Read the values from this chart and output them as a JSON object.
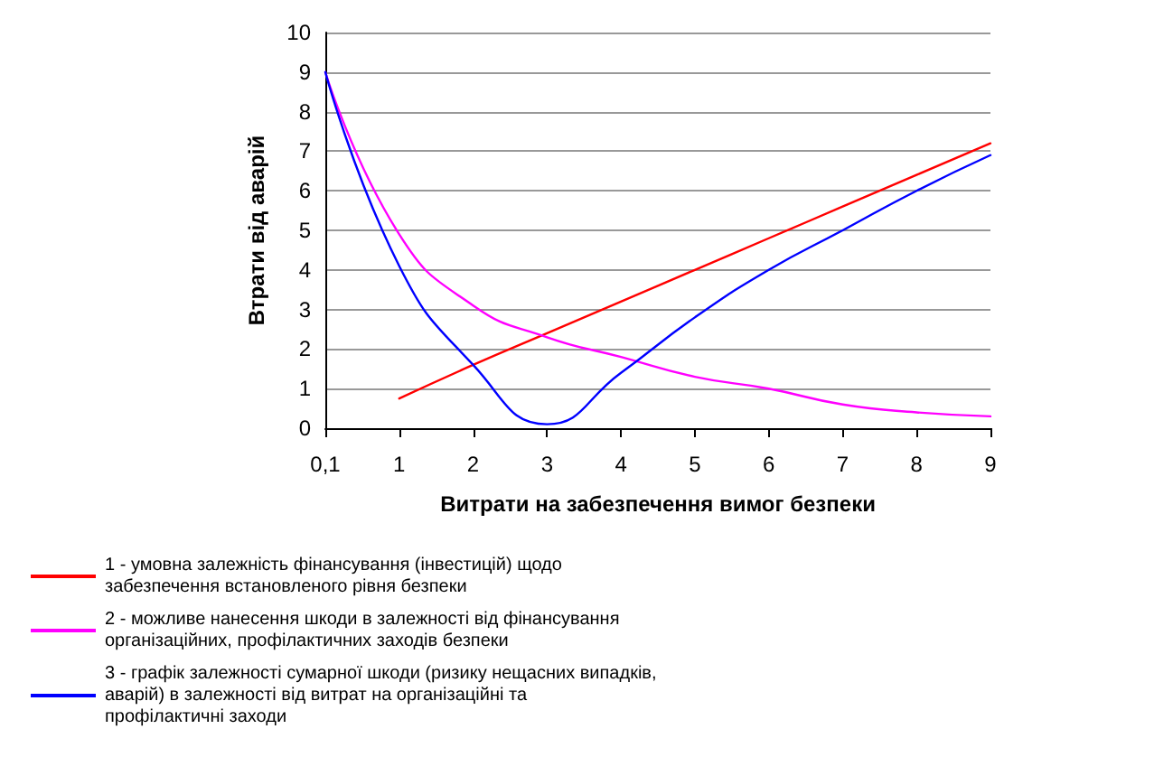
{
  "chart_data": {
    "type": "line",
    "xlabel": "Витрати на забезпечення вимог безпеки",
    "ylabel": "Втрати від аварій",
    "categories": [
      "0,1",
      "1",
      "2",
      "3",
      "4",
      "5",
      "6",
      "7",
      "8",
      "9"
    ],
    "series": [
      {
        "name": "1 - умовна залежність фінансування (інвестицій) щодо забезпечення встановленого рівня безпеки",
        "color": "#ff0000",
        "values": [
          null,
          0.75,
          1.6,
          2.4,
          3.2,
          4.0,
          4.8,
          5.6,
          6.4,
          7.2
        ]
      },
      {
        "name": "2 - можливе нанесення шкоди в залежності від фінансування організаційних, профілактичних заходів безпеки",
        "color": "#ff00ff",
        "values": [
          9,
          4.9,
          3.1,
          2.3,
          1.8,
          1.3,
          1.0,
          0.6,
          0.4,
          0.3
        ]
      },
      {
        "name": "3 - графік залежності сумарної шкоди (ризику нещасних випадків, аварій) в залежності від витрат на організаційні та профілактичні заходи",
        "color": "#0000ff",
        "values": [
          9,
          4.1,
          1.6,
          0.1,
          1.4,
          2.8,
          4.0,
          5.0,
          6.0,
          6.9
        ]
      }
    ],
    "ylim": [
      0,
      10
    ],
    "yticks": [
      0,
      1,
      2,
      3,
      4,
      5,
      6,
      7,
      8,
      9,
      10
    ],
    "grid": "y",
    "legend": "bottom",
    "marker": "none",
    "line_style": "solid"
  }
}
